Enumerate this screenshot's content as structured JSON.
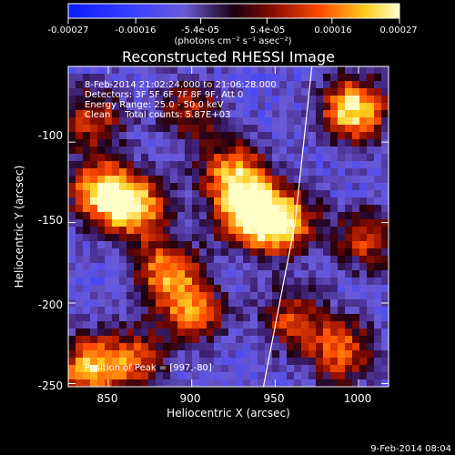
{
  "chart_data": {
    "type": "heatmap",
    "title": "Reconstructed RHESSI Image",
    "xlabel": "Heliocentric X (arcsec)",
    "ylabel": "Heliocentric Y (arcsec)",
    "xlim": [
      826,
      1018
    ],
    "ylim": [
      -252,
      -53
    ],
    "x_ticks": [
      "850",
      "900",
      "950",
      "1000"
    ],
    "x_tick_values": [
      850,
      900,
      950,
      1000
    ],
    "y_ticks": [
      "-100",
      "-150",
      "-200",
      "-250"
    ],
    "y_tick_values": [
      -100,
      -150,
      -200,
      -250
    ],
    "colorbar": {
      "range": [
        -0.00027,
        0.00027
      ],
      "tick_labels": [
        "-0.00027",
        "-0.00016",
        "-5.4e-05",
        "5.4e-05",
        "0.00016",
        "0.00027"
      ],
      "tick_values": [
        -0.00027,
        -0.00016,
        -5.4e-05,
        5.4e-05,
        0.00016,
        0.00027
      ],
      "unit_text": "(photons cm⁻² s⁻¹ asec⁻²)"
    },
    "annotations": {
      "time": "8-Feb-2014 21:02:24.000 to 21:06:28.000",
      "detectors": "Detectors: 3F 5F 6F 7F 8F 9F, Att 0",
      "energy": "Energy Range: 25.0 - 50.0 keV",
      "clean": "Clean     Total counts: 5.87E+03",
      "peak": "Position of Peak = [997,-80]"
    },
    "hotspots": [
      {
        "x": 997,
        "y": -80,
        "value": 0.00027
      },
      {
        "x": 935,
        "y": -145,
        "value": 0.00026
      },
      {
        "x": 925,
        "y": -120,
        "value": 0.0002
      },
      {
        "x": 955,
        "y": -150,
        "value": 0.00022
      },
      {
        "x": 865,
        "y": -140,
        "value": 0.00024
      },
      {
        "x": 845,
        "y": -130,
        "value": 0.0002
      },
      {
        "x": 838,
        "y": -240,
        "value": 0.0002
      },
      {
        "x": 885,
        "y": -180,
        "value": 0.00018
      },
      {
        "x": 900,
        "y": -205,
        "value": 0.00016
      },
      {
        "x": 865,
        "y": -235,
        "value": 0.00012
      },
      {
        "x": 990,
        "y": -230,
        "value": 0.00016
      },
      {
        "x": 960,
        "y": -210,
        "value": 0.00012
      },
      {
        "x": 840,
        "y": -85,
        "value": 0.00012
      },
      {
        "x": 900,
        "y": -80,
        "value": 0.0001
      },
      {
        "x": 1005,
        "y": -160,
        "value": 0.00012
      }
    ],
    "limb_line": [
      {
        "x": 972,
        "y": -53
      },
      {
        "x": 962,
        "y": -150
      },
      {
        "x": 943,
        "y": -252
      }
    ]
  },
  "footer": {
    "timestamp": "9-Feb-2014 08:04"
  }
}
